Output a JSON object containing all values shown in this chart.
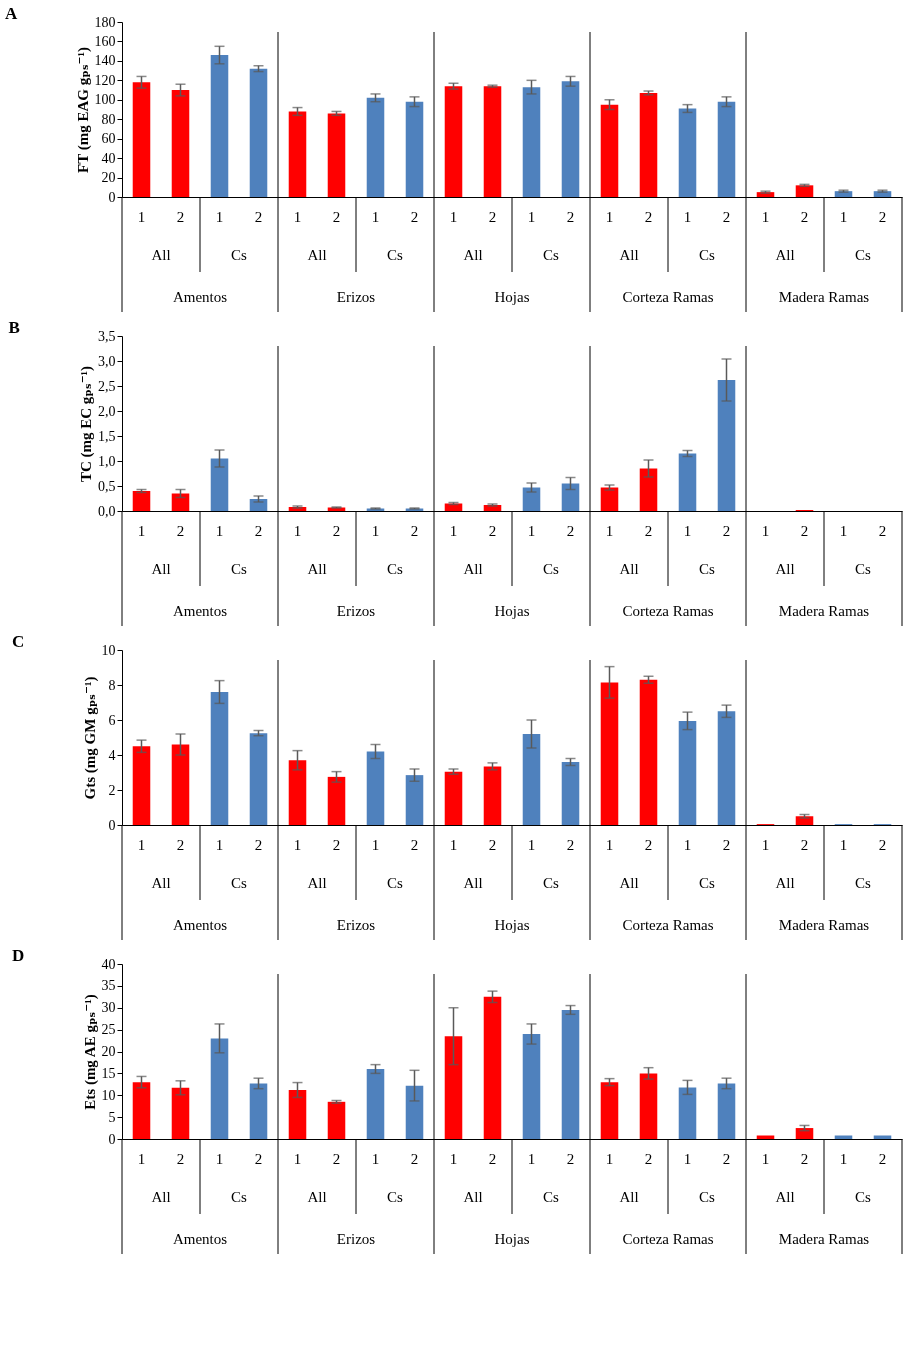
{
  "chart_data": [
    {
      "type": "bar",
      "title": "A",
      "ylabel": "FT (mg EAG gₚₛ⁻¹)",
      "categories": [
        "1",
        "2",
        "1",
        "2",
        "1",
        "2",
        "1",
        "2",
        "1",
        "2",
        "1",
        "2",
        "1",
        "2",
        "1",
        "2",
        "1",
        "2",
        "1",
        "2"
      ],
      "values": [
        118,
        110,
        146,
        132,
        88,
        86,
        102,
        98,
        114,
        114,
        113,
        119,
        95,
        107,
        91,
        98,
        5,
        12,
        6,
        6
      ],
      "errors": [
        6,
        6,
        9,
        3,
        4,
        2,
        4,
        5,
        3,
        1,
        7,
        5,
        5,
        2,
        4,
        5,
        1,
        1,
        1,
        1
      ],
      "colors": [
        "#ff0000",
        "#ff0000",
        "#4f81bd",
        "#4f81bd",
        "#ff0000",
        "#ff0000",
        "#4f81bd",
        "#4f81bd",
        "#ff0000",
        "#ff0000",
        "#4f81bd",
        "#4f81bd",
        "#ff0000",
        "#ff0000",
        "#4f81bd",
        "#4f81bd",
        "#ff0000",
        "#ff0000",
        "#4f81bd",
        "#4f81bd"
      ],
      "ylim": [
        0,
        180
      ],
      "yticks": [
        0,
        20,
        40,
        60,
        80,
        100,
        120,
        140,
        160,
        180
      ],
      "grid": false,
      "annotations": [
        "All",
        "Cs",
        "All",
        "Cs",
        "All",
        "Cs",
        "All",
        "Cs",
        "All",
        "Cs",
        "Amentos",
        "Erizos",
        "Hojas",
        "Corteza Ramas",
        "Madera Ramas"
      ]
    },
    {
      "type": "bar",
      "title": "B",
      "ylabel": "TC (mg EC gₚₛ⁻¹)",
      "categories": [
        "1",
        "2",
        "1",
        "2",
        "1",
        "2",
        "1",
        "2",
        "1",
        "2",
        "1",
        "2",
        "1",
        "2",
        "1",
        "2",
        "1",
        "2",
        "1",
        "2"
      ],
      "values": [
        0.4,
        0.35,
        1.05,
        0.24,
        0.08,
        0.07,
        0.05,
        0.05,
        0.15,
        0.12,
        0.47,
        0.55,
        0.47,
        0.85,
        1.15,
        2.62,
        0,
        0.02,
        0,
        0
      ],
      "errors": [
        0.03,
        0.08,
        0.17,
        0.06,
        0.02,
        0.01,
        0.01,
        0.01,
        0.02,
        0.02,
        0.09,
        0.12,
        0.05,
        0.17,
        0.06,
        0.42,
        null,
        null,
        null,
        null
      ],
      "colors": [
        "#ff0000",
        "#ff0000",
        "#4f81bd",
        "#4f81bd",
        "#ff0000",
        "#ff0000",
        "#4f81bd",
        "#4f81bd",
        "#ff0000",
        "#ff0000",
        "#4f81bd",
        "#4f81bd",
        "#ff0000",
        "#ff0000",
        "#4f81bd",
        "#4f81bd",
        "#ff0000",
        "#ff0000",
        "#4f81bd",
        "#4f81bd"
      ],
      "ylim": [
        0,
        3.5
      ],
      "yticks": [
        {
          "value": 0,
          "label": "0,0"
        },
        {
          "value": 0.5,
          "label": "0,5"
        },
        {
          "value": 1,
          "label": "1,0"
        },
        {
          "value": 1.5,
          "label": "1,5"
        },
        {
          "value": 2,
          "label": "2,0"
        },
        {
          "value": 2.5,
          "label": "2,5"
        },
        {
          "value": 3,
          "label": "3,0"
        },
        {
          "value": 3.5,
          "label": "3,5"
        }
      ],
      "grid": false,
      "annotations": [
        "All",
        "Cs",
        "All",
        "Cs",
        "All",
        "Cs",
        "All",
        "Cs",
        "All",
        "Cs",
        "Amentos",
        "Erizos",
        "Hojas",
        "Corteza Ramas",
        "Madera Ramas"
      ]
    },
    {
      "type": "bar",
      "title": "C",
      "ylabel": "Gts (mg GM gₚₛ⁻¹)",
      "categories": [
        "1",
        "2",
        "1",
        "2",
        "1",
        "2",
        "1",
        "2",
        "1",
        "2",
        "1",
        "2",
        "1",
        "2",
        "1",
        "2",
        "1",
        "2",
        "1",
        "2"
      ],
      "values": [
        4.5,
        4.6,
        7.6,
        5.25,
        3.7,
        2.75,
        4.2,
        2.85,
        3.05,
        3.35,
        5.2,
        3.6,
        8.15,
        8.3,
        5.95,
        6.5,
        0.05,
        0.5,
        0.05,
        0.05
      ],
      "errors": [
        0.35,
        0.6,
        0.65,
        0.15,
        0.55,
        0.3,
        0.4,
        0.35,
        0.15,
        0.2,
        0.8,
        0.2,
        0.9,
        0.2,
        0.5,
        0.35,
        null,
        0.1,
        null,
        null
      ],
      "colors": [
        "#ff0000",
        "#ff0000",
        "#4f81bd",
        "#4f81bd",
        "#ff0000",
        "#ff0000",
        "#4f81bd",
        "#4f81bd",
        "#ff0000",
        "#ff0000",
        "#4f81bd",
        "#4f81bd",
        "#ff0000",
        "#ff0000",
        "#4f81bd",
        "#4f81bd",
        "#ff0000",
        "#ff0000",
        "#4f81bd",
        "#4f81bd"
      ],
      "ylim": [
        0,
        10
      ],
      "yticks": [
        0,
        2,
        4,
        6,
        8,
        10
      ],
      "grid": false,
      "annotations": [
        "All",
        "Cs",
        "All",
        "Cs",
        "All",
        "Cs",
        "All",
        "Cs",
        "All",
        "Cs",
        "Amentos",
        "Erizos",
        "Hojas",
        "Corteza Ramas",
        "Madera Ramas"
      ]
    },
    {
      "type": "bar",
      "title": "D",
      "ylabel": "Ets (mg AE gₚₛ⁻¹)",
      "categories": [
        "1",
        "2",
        "1",
        "2",
        "1",
        "2",
        "1",
        "2",
        "1",
        "2",
        "1",
        "2",
        "1",
        "2",
        "1",
        "2",
        "1",
        "2",
        "1",
        "2"
      ],
      "values": [
        13,
        11.7,
        23,
        12.7,
        11.2,
        8.5,
        16,
        12.2,
        23.5,
        32.5,
        24,
        29.5,
        13,
        15,
        11.8,
        12.7,
        0.8,
        2.5,
        0.8,
        0.8
      ],
      "errors": [
        1.3,
        1.6,
        3.3,
        1.2,
        1.7,
        0.3,
        1,
        3.5,
        6.5,
        1.3,
        2.3,
        1,
        0.8,
        1.3,
        1.6,
        1.2,
        null,
        0.6,
        null,
        null
      ],
      "colors": [
        "#ff0000",
        "#ff0000",
        "#4f81bd",
        "#4f81bd",
        "#ff0000",
        "#ff0000",
        "#4f81bd",
        "#4f81bd",
        "#ff0000",
        "#ff0000",
        "#4f81bd",
        "#4f81bd",
        "#ff0000",
        "#ff0000",
        "#4f81bd",
        "#4f81bd",
        "#ff0000",
        "#ff0000",
        "#4f81bd",
        "#4f81bd"
      ],
      "ylim": [
        0,
        40
      ],
      "yticks": [
        0,
        5,
        10,
        15,
        20,
        25,
        30,
        35,
        40
      ],
      "grid": false,
      "annotations": [
        "All",
        "Cs",
        "All",
        "Cs",
        "All",
        "Cs",
        "All",
        "Cs",
        "All",
        "Cs",
        "Amentos",
        "Erizos",
        "Hojas",
        "Corteza Ramas",
        "Madera Ramas"
      ]
    }
  ]
}
